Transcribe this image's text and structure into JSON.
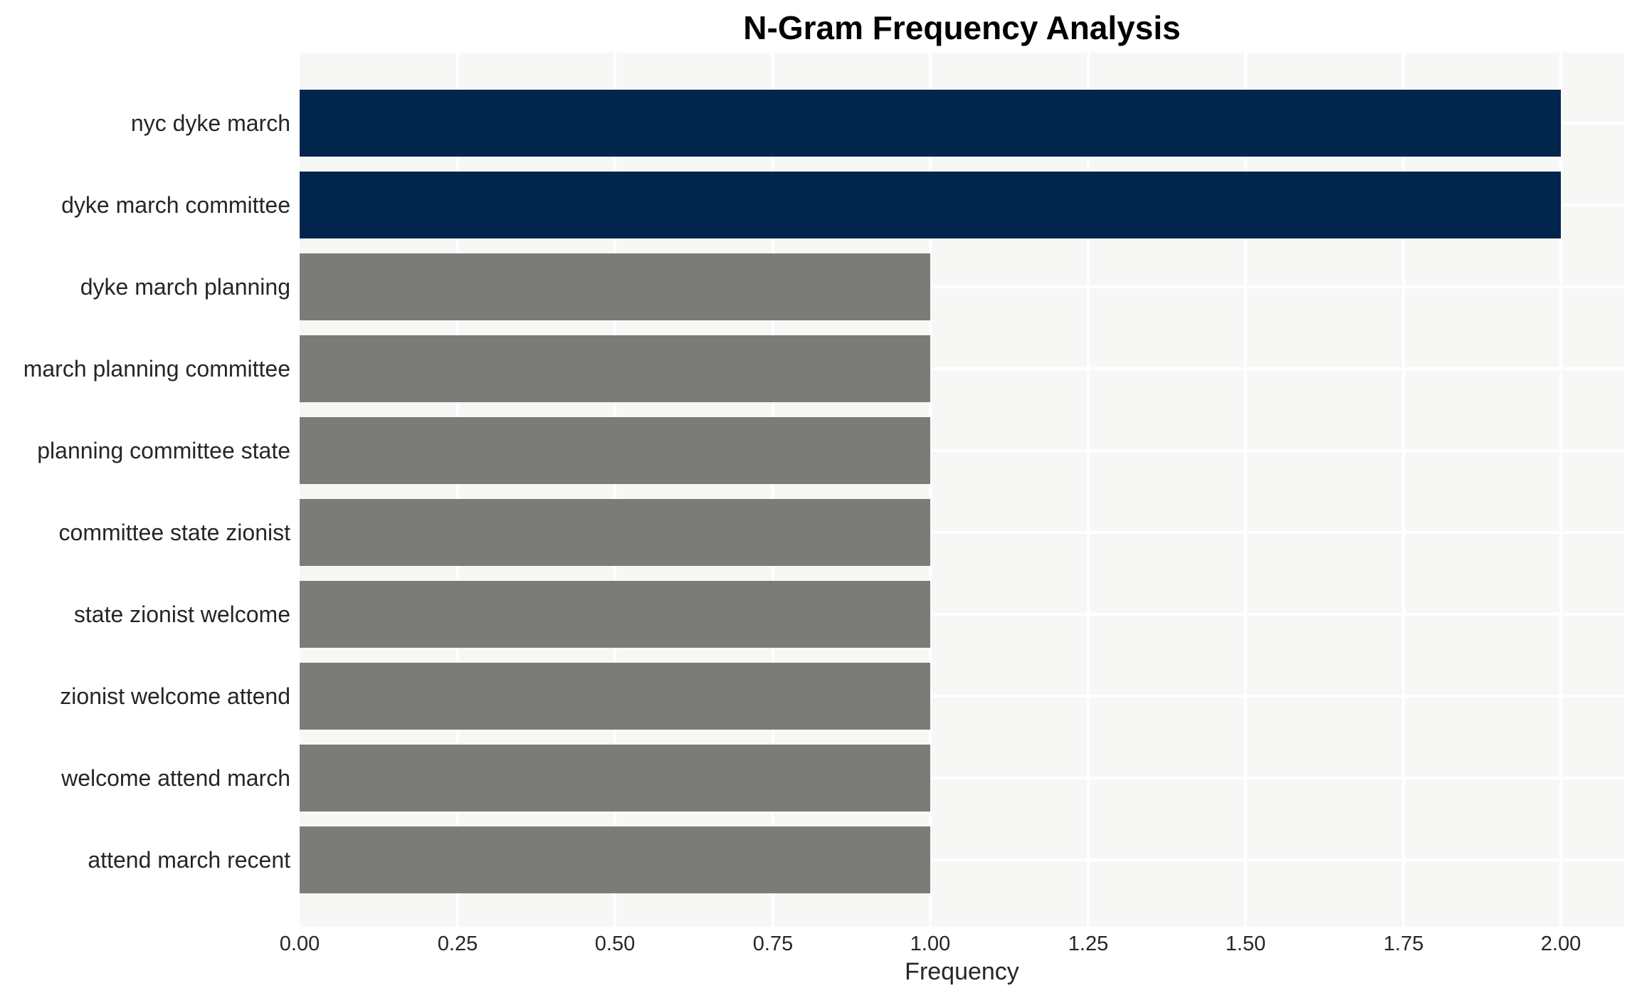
{
  "chart_data": {
    "type": "bar",
    "orientation": "horizontal",
    "title": "N-Gram Frequency Analysis",
    "xlabel": "Frequency",
    "ylabel": "",
    "categories": [
      "nyc dyke march",
      "dyke march committee",
      "dyke march planning",
      "march planning committee",
      "planning committee state",
      "committee state zionist",
      "state zionist welcome",
      "zionist welcome attend",
      "welcome attend march",
      "attend march recent"
    ],
    "values": [
      2,
      2,
      1,
      1,
      1,
      1,
      1,
      1,
      1,
      1
    ],
    "xlim": [
      0,
      2.1
    ],
    "xticks": [
      "0.00",
      "0.25",
      "0.50",
      "0.75",
      "1.00",
      "1.25",
      "1.50",
      "1.75",
      "2.00"
    ],
    "xtick_step": 0.25,
    "grid": true,
    "legend": false,
    "bar_colors": [
      "#02254e",
      "#02254e",
      "#7b7b78",
      "#7b7b78",
      "#7b7b78",
      "#7b7b78",
      "#7b7b78",
      "#7b7b78",
      "#7b7b78",
      "#7b7b78"
    ],
    "colors": {
      "highlight_bar": "#02254e",
      "regular_bar": "#7b7b78",
      "plot_background": "#f7f7f6",
      "gridline": "#ffffff",
      "tick_text": "#262626",
      "title_text": "#000000"
    }
  }
}
